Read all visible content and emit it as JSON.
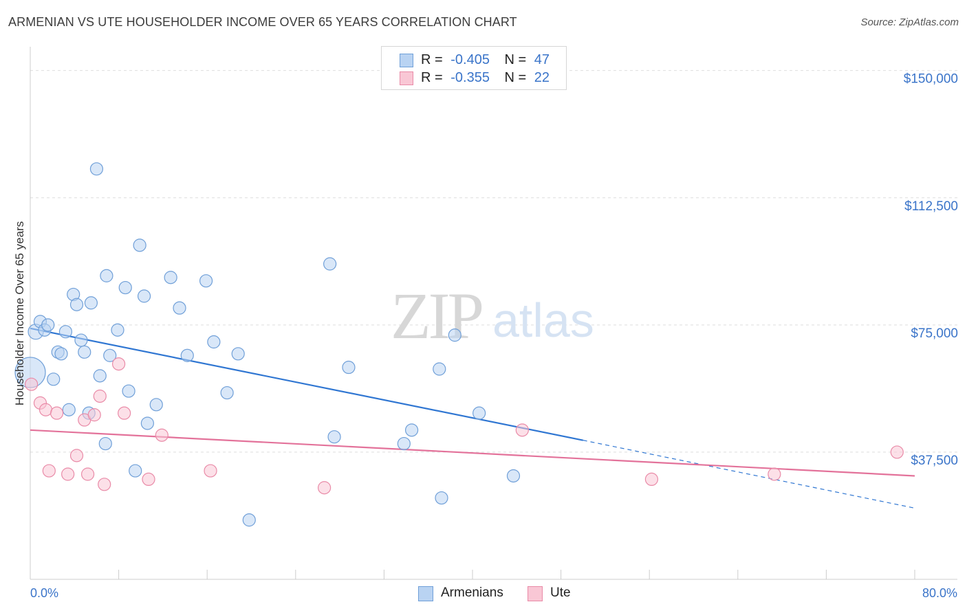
{
  "title": "ARMENIAN VS UTE HOUSEHOLDER INCOME OVER 65 YEARS CORRELATION CHART",
  "source": "Source: ZipAtlas.com",
  "watermark": {
    "zip": "ZIP",
    "atlas": "atlas"
  },
  "colors": {
    "armenians_fill": "#b9d3f2",
    "armenians_stroke": "#6f9fd8",
    "armenians_line": "#2f76d2",
    "ute_fill": "#f9c7d5",
    "ute_stroke": "#e98aa7",
    "ute_line": "#e3729a",
    "tick_text": "#3a74c9",
    "grid": "#dedede"
  },
  "legend": {
    "rows": [
      {
        "r_label": "R =",
        "r_value": "-0.405",
        "n_label": "N =",
        "n_value": "47"
      },
      {
        "r_label": "R =",
        "r_value": "-0.355",
        "n_label": "N =",
        "n_value": "22"
      }
    ],
    "bottom": [
      "Armenians",
      "Ute"
    ]
  },
  "chart_data": {
    "type": "scatter",
    "xlabel": "",
    "ylabel": "Householder Income Over 65 years",
    "xlim": [
      0,
      80
    ],
    "ylim": [
      0,
      155000
    ],
    "x_tick_labels": [
      "0.0%",
      "80.0%"
    ],
    "y_ticks": [
      37500,
      75000,
      112500,
      150000
    ],
    "y_tick_labels": [
      "$37,500",
      "$75,000",
      "$112,500",
      "$150,000"
    ],
    "grid": true,
    "series": [
      {
        "name": "Armenians",
        "r": -0.405,
        "n": 47,
        "trend": {
          "x0": 0,
          "y0": 74000,
          "x1": 50,
          "y1": 41000,
          "dash_x1": 80,
          "dash_y1": 21000
        },
        "points": [
          [
            0.0,
            61000,
            22
          ],
          [
            0.5,
            73000,
            11
          ],
          [
            0.9,
            76000,
            9
          ],
          [
            1.3,
            73500,
            9
          ],
          [
            1.6,
            75000,
            9
          ],
          [
            2.1,
            59000,
            9
          ],
          [
            2.5,
            67000,
            9
          ],
          [
            2.8,
            66500,
            9
          ],
          [
            3.2,
            73000,
            9
          ],
          [
            3.5,
            50000,
            9
          ],
          [
            3.9,
            84000,
            9
          ],
          [
            4.2,
            81000,
            9
          ],
          [
            4.6,
            70500,
            9
          ],
          [
            4.9,
            67000,
            9
          ],
          [
            5.3,
            49000,
            9
          ],
          [
            5.5,
            81500,
            9
          ],
          [
            6.0,
            121000,
            9
          ],
          [
            6.3,
            60000,
            9
          ],
          [
            6.8,
            40000,
            9
          ],
          [
            6.9,
            89500,
            9
          ],
          [
            7.2,
            66000,
            9
          ],
          [
            7.9,
            73500,
            9
          ],
          [
            8.6,
            86000,
            9
          ],
          [
            8.9,
            55500,
            9
          ],
          [
            9.5,
            32000,
            9
          ],
          [
            9.9,
            98500,
            9
          ],
          [
            10.3,
            83500,
            9
          ],
          [
            10.6,
            46000,
            9
          ],
          [
            11.4,
            51500,
            9
          ],
          [
            12.7,
            89000,
            9
          ],
          [
            13.5,
            80000,
            9
          ],
          [
            14.2,
            66000,
            9
          ],
          [
            15.9,
            88000,
            9
          ],
          [
            16.6,
            70000,
            9
          ],
          [
            17.8,
            55000,
            9
          ],
          [
            18.8,
            66500,
            9
          ],
          [
            19.8,
            17500,
            9
          ],
          [
            27.1,
            93000,
            9
          ],
          [
            27.5,
            42000,
            9
          ],
          [
            28.8,
            62500,
            9
          ],
          [
            33.8,
            40000,
            9
          ],
          [
            34.5,
            44000,
            9
          ],
          [
            37.0,
            62000,
            9
          ],
          [
            37.2,
            24000,
            9
          ],
          [
            38.4,
            72000,
            9
          ],
          [
            40.6,
            49000,
            9
          ],
          [
            43.7,
            30500,
            9
          ]
        ]
      },
      {
        "name": "Ute",
        "r": -0.355,
        "n": 22,
        "trend": {
          "x0": 0,
          "y0": 44000,
          "x1": 80,
          "y1": 30500
        },
        "points": [
          [
            0.1,
            57500,
            9
          ],
          [
            0.9,
            52000,
            9
          ],
          [
            1.4,
            50000,
            9
          ],
          [
            1.7,
            32000,
            9
          ],
          [
            2.4,
            49000,
            9
          ],
          [
            3.4,
            31000,
            9
          ],
          [
            4.2,
            36500,
            9
          ],
          [
            4.9,
            47000,
            9
          ],
          [
            5.2,
            31000,
            9
          ],
          [
            5.8,
            48500,
            9
          ],
          [
            6.3,
            54000,
            9
          ],
          [
            6.7,
            28000,
            9
          ],
          [
            8.0,
            63500,
            9
          ],
          [
            8.5,
            49000,
            9
          ],
          [
            10.7,
            29500,
            9
          ],
          [
            11.9,
            42500,
            9
          ],
          [
            16.3,
            32000,
            9
          ],
          [
            26.6,
            27000,
            9
          ],
          [
            44.5,
            44000,
            9
          ],
          [
            56.2,
            29500,
            9
          ],
          [
            67.3,
            31000,
            9
          ],
          [
            78.4,
            37500,
            9
          ]
        ]
      }
    ]
  }
}
